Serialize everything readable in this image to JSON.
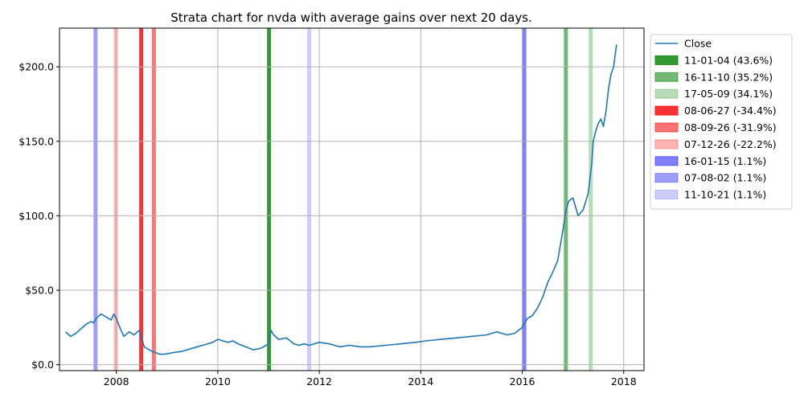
{
  "chart_data": {
    "type": "line",
    "title": "Strata chart for nvda with average gains over next 20 days.",
    "xlabel": "",
    "ylabel": "",
    "xlim": [
      2006.88,
      2018.4
    ],
    "ylim": [
      -4,
      226
    ],
    "x_ticks": [
      2008,
      2010,
      2012,
      2014,
      2016,
      2018
    ],
    "x_tick_labels": [
      "2008",
      "2010",
      "2012",
      "2014",
      "2016",
      "2018"
    ],
    "y_ticks": [
      0,
      50,
      100,
      150,
      200
    ],
    "y_tick_labels": [
      "$0.0",
      "$50.0",
      "$100.0",
      "$150.0",
      "$200.0"
    ],
    "grid": true,
    "legend_position": "outside-top-right",
    "series": [
      {
        "name": "Close",
        "color": "#1f77b4",
        "x": [
          2007.0,
          2007.1,
          2007.2,
          2007.3,
          2007.4,
          2007.5,
          2007.55,
          2007.6,
          2007.7,
          2007.8,
          2007.9,
          2007.95,
          2008.0,
          2008.08,
          2008.15,
          2008.25,
          2008.35,
          2008.45,
          2008.5,
          2008.55,
          2008.6,
          2008.65,
          2008.7,
          2008.78,
          2008.85,
          2008.95,
          2009.1,
          2009.3,
          2009.5,
          2009.7,
          2009.9,
          2010.0,
          2010.1,
          2010.2,
          2010.3,
          2010.4,
          2010.55,
          2010.7,
          2010.85,
          2011.0,
          2011.05,
          2011.1,
          2011.2,
          2011.35,
          2011.5,
          2011.6,
          2011.7,
          2011.8,
          2012.0,
          2012.2,
          2012.4,
          2012.6,
          2012.8,
          2013.0,
          2013.3,
          2013.6,
          2013.9,
          2014.1,
          2014.4,
          2014.7,
          2015.0,
          2015.3,
          2015.5,
          2015.7,
          2015.85,
          2016.0,
          2016.1,
          2016.2,
          2016.3,
          2016.4,
          2016.5,
          2016.6,
          2016.7,
          2016.8,
          2016.87,
          2016.92,
          2017.0,
          2017.1,
          2017.2,
          2017.3,
          2017.37,
          2017.4,
          2017.45,
          2017.5,
          2017.55,
          2017.6,
          2017.65,
          2017.7,
          2017.75,
          2017.8,
          2017.86
        ],
        "values": [
          22,
          19,
          21,
          24,
          27,
          29,
          28,
          31,
          34,
          32,
          30,
          34,
          31,
          24,
          19,
          22,
          20,
          23,
          18,
          12,
          11,
          10,
          9,
          8,
          7,
          7,
          8,
          9,
          11,
          13,
          15,
          17,
          16,
          15,
          16,
          14,
          12,
          10,
          11,
          14,
          23,
          20,
          17,
          18,
          14,
          13,
          14,
          13,
          15,
          14,
          12,
          13,
          12,
          12,
          13,
          14,
          15,
          16,
          17,
          18,
          19,
          20,
          22,
          20,
          21,
          25,
          31,
          33,
          38,
          45,
          55,
          62,
          70,
          90,
          105,
          110,
          112,
          100,
          104,
          115,
          135,
          150,
          157,
          162,
          165,
          160,
          170,
          185,
          195,
          200,
          215
        ]
      }
    ],
    "strata": [
      {
        "label": "11-01-04 (43.6%)",
        "x": 2011.01,
        "color": "#008000",
        "opacity": 0.8
      },
      {
        "label": "16-11-10 (35.2%)",
        "x": 2016.86,
        "color": "#008000",
        "opacity": 0.55
      },
      {
        "label": "17-05-09 (34.1%)",
        "x": 2017.35,
        "color": "#008000",
        "opacity": 0.28
      },
      {
        "label": "08-06-27 (-34.4%)",
        "x": 2008.49,
        "color": "#ff0000",
        "opacity": 0.8
      },
      {
        "label": "08-09-26 (-31.9%)",
        "x": 2008.74,
        "color": "#ff0000",
        "opacity": 0.55
      },
      {
        "label": "07-12-26 (-22.2%)",
        "x": 2007.99,
        "color": "#ff0000",
        "opacity": 0.3
      },
      {
        "label": "16-01-15 (1.1%)",
        "x": 2016.04,
        "color": "#0000ff",
        "opacity": 0.5
      },
      {
        "label": "07-08-02 (1.1%)",
        "x": 2007.59,
        "color": "#0000ff",
        "opacity": 0.38
      },
      {
        "label": "11-10-21 (1.1%)",
        "x": 2011.8,
        "color": "#0000ff",
        "opacity": 0.2
      }
    ]
  }
}
